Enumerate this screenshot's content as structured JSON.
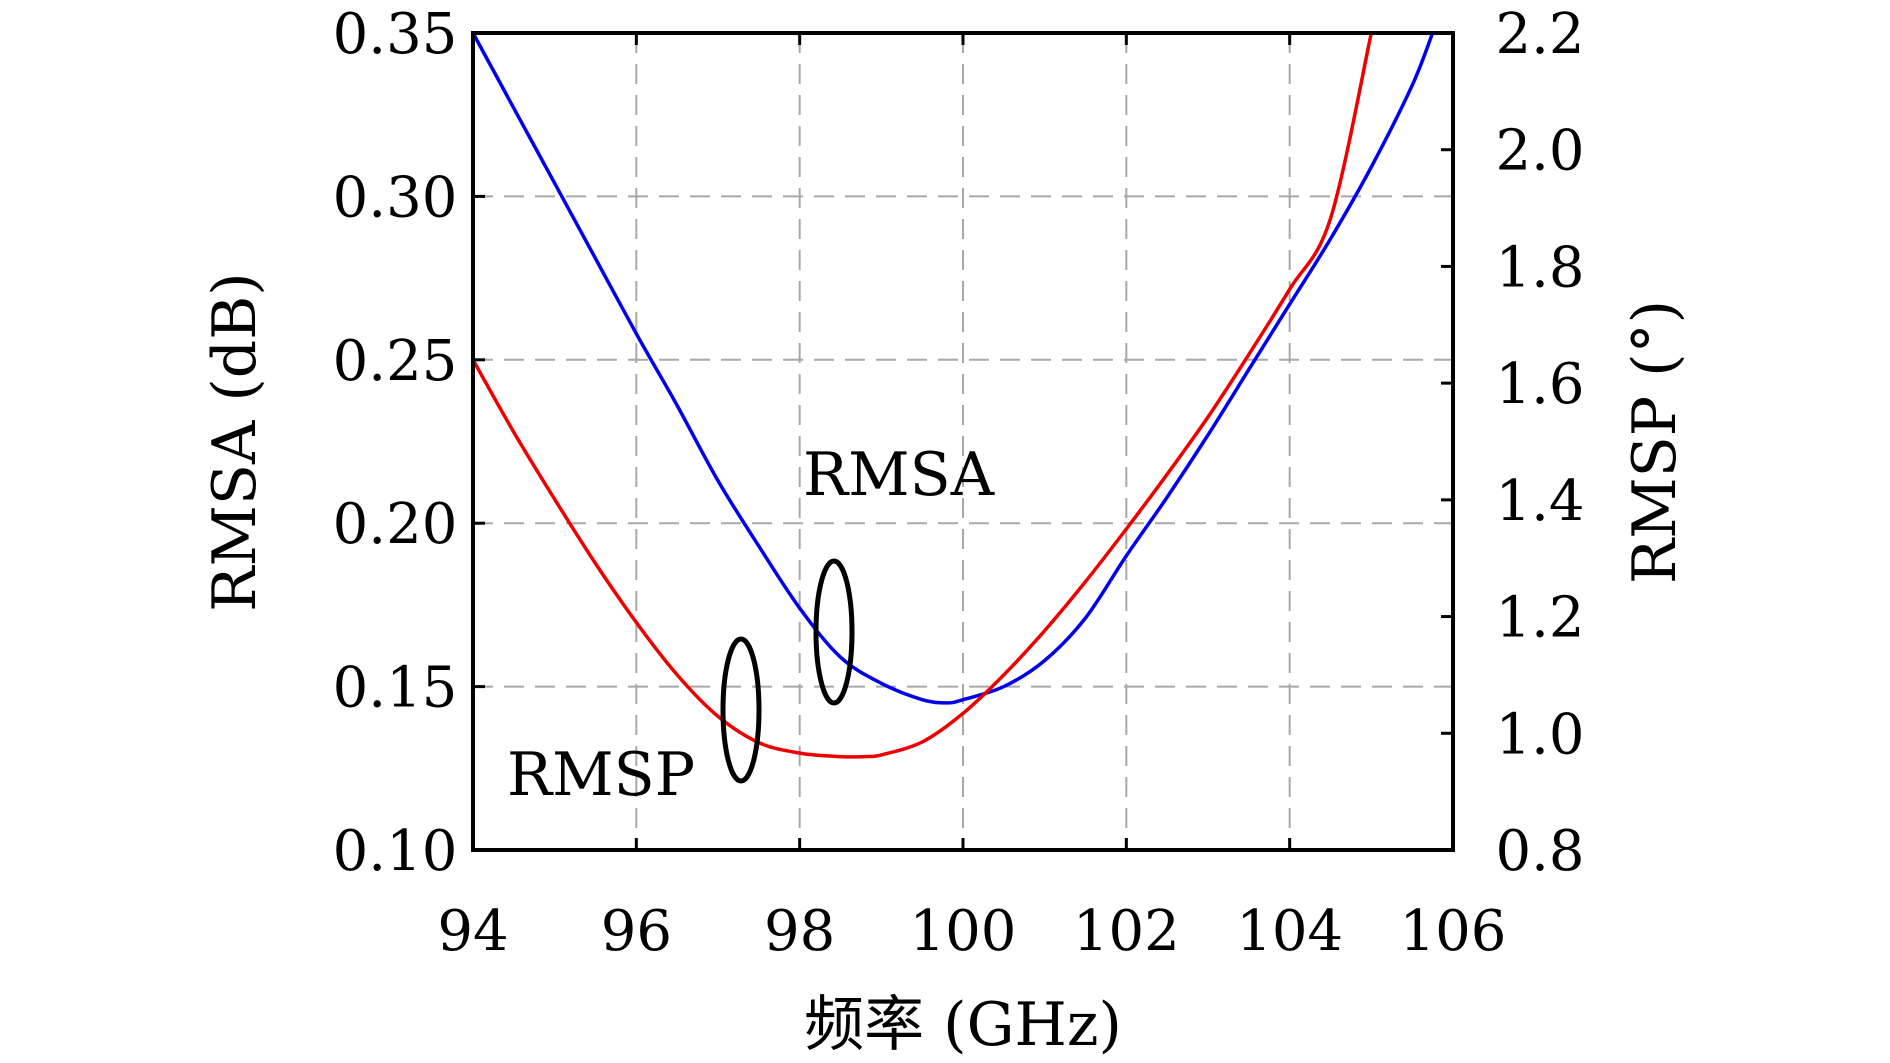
{
  "chart_data": {
    "type": "line",
    "xlabel": "频率 (GHz)",
    "ylabel_left": "RMSA (dB)",
    "ylabel_right": "RMSP (°)",
    "xlim": [
      94,
      106
    ],
    "ylim_left": [
      0.1,
      0.35
    ],
    "ylim_right": [
      0.8,
      2.2
    ],
    "x_ticks": [
      "94",
      "96",
      "98",
      "100",
      "102",
      "104",
      "106"
    ],
    "x_tick_values": [
      94,
      96,
      98,
      100,
      102,
      104,
      106
    ],
    "y_left_ticks": [
      "0.10",
      "0.15",
      "0.20",
      "0.25",
      "0.30",
      "0.35"
    ],
    "y_left_tick_values": [
      0.1,
      0.15,
      0.2,
      0.25,
      0.3,
      0.35
    ],
    "y_right_ticks": [
      "0.8",
      "1.0",
      "1.2",
      "1.4",
      "1.6",
      "1.8",
      "2.0",
      "2.2"
    ],
    "y_right_tick_values": [
      0.8,
      1.0,
      1.2,
      1.4,
      1.6,
      1.8,
      2.0,
      2.2
    ],
    "grid": true,
    "series": [
      {
        "axis": "left",
        "color": "#0000ee",
        "x": [
          94,
          94.5,
          95,
          95.5,
          96,
          96.5,
          97,
          97.5,
          98,
          98.5,
          99,
          99.5,
          99.8,
          100,
          100.5,
          101,
          101.5,
          102,
          102.5,
          103,
          103.5,
          104,
          104.5,
          105,
          105.5,
          105.75
        ],
        "y": [
          0.35,
          0.327,
          0.304,
          0.281,
          0.258,
          0.236,
          0.213,
          0.193,
          0.174,
          0.159,
          0.151,
          0.146,
          0.145,
          0.146,
          0.15,
          0.158,
          0.171,
          0.19,
          0.208,
          0.227,
          0.247,
          0.267,
          0.287,
          0.309,
          0.334,
          0.35
        ]
      },
      {
        "axis": "right",
        "color": "#ee0000",
        "x": [
          94,
          94.5,
          95,
          95.5,
          96,
          96.5,
          97,
          97.5,
          98,
          98.5,
          98.8,
          99,
          99.5,
          100,
          100.5,
          101,
          101.5,
          102,
          102.5,
          103,
          103.5,
          104,
          104.5,
          105
        ],
        "y": [
          1.64,
          1.516,
          1.401,
          1.291,
          1.19,
          1.1,
          1.029,
          0.984,
          0.966,
          0.96,
          0.96,
          0.963,
          0.985,
          1.034,
          1.1,
          1.176,
          1.26,
          1.35,
          1.444,
          1.542,
          1.649,
          1.761,
          1.882,
          2.2
        ]
      }
    ],
    "annotations": [
      {
        "text": "RMSA",
        "points_to": "left"
      },
      {
        "text": "RMSP",
        "points_to": "right"
      }
    ]
  }
}
